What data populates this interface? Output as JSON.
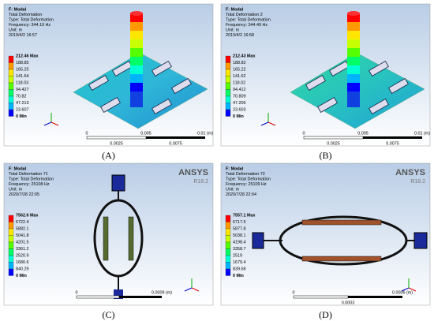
{
  "panels": [
    {
      "label": "(A)",
      "header": [
        "F: Modal",
        "Total Deformation",
        "Type: Total Deformation",
        "Frequency: 344.19 Hz",
        "Unit: m",
        "2019/4/2 16:57"
      ],
      "legend": [
        "212.46 Max",
        "188.85",
        "165.25",
        "141.64",
        "118.03",
        "94.427",
        "70.82",
        "47.213",
        "23.607",
        "0 Min"
      ],
      "scale_top": [
        "0",
        "0.005",
        "0.01 (m)"
      ],
      "scale_bottom": [
        "0.0025",
        "0.0075"
      ]
    },
    {
      "label": "(B)",
      "header": [
        "F: Modal",
        "Total Deformation 2",
        "Type: Total Deformation",
        "Frequency: 344.49 Hz",
        "Unit: m",
        "2019/4/2 16:58"
      ],
      "legend": [
        "212.43 Max",
        "188.82",
        "165.22",
        "141.62",
        "118.02",
        "94.412",
        "70.809",
        "47.206",
        "23.603",
        "0 Min"
      ],
      "scale_top": [
        "0",
        "0.005",
        "0.01 (m)"
      ],
      "scale_bottom": [
        "0.0025",
        "0.0075"
      ]
    },
    {
      "label": "(C)",
      "brand": "ANSYS",
      "version": "R18.2",
      "header": [
        "F: Modal",
        "Total Deformation 71",
        "Type: Total Deformation",
        "Frequency: 25108 Hz",
        "Unit: m",
        "2020/7/28 22:05"
      ],
      "legend": [
        "7562.6 Max",
        "6722.4",
        "5882.1",
        "5041.8",
        "4201.5",
        "3361.2",
        "2520.9",
        "1680.6",
        "840.29",
        "0 Min"
      ],
      "scale_top": [
        "0",
        "0.0009 (m)"
      ],
      "scale_bottom": []
    },
    {
      "label": "(D)",
      "brand": "ANSYS",
      "version": "R18.2",
      "header": [
        "F: Modal",
        "Total Deformation 72",
        "Type: Total Deformation",
        "Frequency: 25109 Hz",
        "Unit: m",
        "2020/7/28 22:04"
      ],
      "legend": [
        "7557.1 Max",
        "6717.5",
        "5877.8",
        "5038.1",
        "4198.4",
        "3358.7",
        "2519",
        "1679.4",
        "839.68",
        "0 Min"
      ],
      "scale_top": [
        "0",
        "0.0006 (m)"
      ],
      "scale_bottom": [
        "0.0003"
      ]
    }
  ]
}
